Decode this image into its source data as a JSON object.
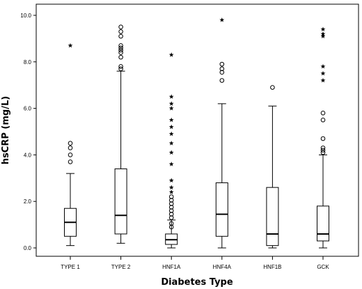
{
  "chart_data": {
    "type": "boxplot",
    "title": "",
    "xlabel": "Diabetes Type",
    "ylabel": "hsCRP (mg/L)",
    "ylim": [
      0,
      10
    ],
    "yticks": [
      "0.0",
      "2.0",
      "4.0",
      "6.0",
      "8.0",
      "10.0"
    ],
    "ytick_values": [
      0,
      2,
      4,
      6,
      8,
      10
    ],
    "grid": false,
    "categories": [
      "TYPE 1",
      "TYPE 2",
      "HNF1A",
      "HNF4A",
      "HNF1B",
      "GCK"
    ],
    "series": [
      {
        "category": "TYPE 1",
        "whisker_low": 0.1,
        "q1": 0.5,
        "median": 1.1,
        "q3": 1.7,
        "whisker_high": 3.2,
        "outliers": [
          3.7,
          4.0,
          4.3,
          4.5
        ],
        "extremes": [
          8.7
        ]
      },
      {
        "category": "TYPE 2",
        "whisker_low": 0.2,
        "q1": 0.6,
        "median": 1.4,
        "q3": 3.4,
        "whisker_high": 7.6,
        "outliers": [
          7.7,
          7.8,
          8.2,
          8.4,
          8.5,
          8.6,
          8.7,
          9.1,
          9.3,
          9.5
        ],
        "extremes": []
      },
      {
        "category": "HNF1A",
        "whisker_low": 0.0,
        "q1": 0.15,
        "median": 0.35,
        "q3": 0.6,
        "whisker_high": 1.2,
        "outliers": [
          0.9,
          1.05,
          1.3,
          1.45,
          1.6,
          1.75,
          1.9,
          2.05,
          2.2
        ],
        "extremes": [
          2.4,
          2.6,
          2.9,
          3.6,
          4.1,
          4.5,
          4.9,
          5.2,
          5.5,
          6.0,
          6.2,
          6.5,
          8.3
        ]
      },
      {
        "category": "HNF4A",
        "whisker_low": 0.0,
        "q1": 0.5,
        "median": 1.45,
        "q3": 2.8,
        "whisker_high": 6.2,
        "outliers": [
          7.2,
          7.55,
          7.7,
          7.9
        ],
        "extremes": [
          9.8
        ]
      },
      {
        "category": "HNF1B",
        "whisker_low": 0.0,
        "q1": 0.1,
        "median": 0.6,
        "q3": 2.6,
        "whisker_high": 6.1,
        "outliers": [
          6.9
        ],
        "extremes": []
      },
      {
        "category": "GCK",
        "whisker_low": 0.0,
        "q1": 0.3,
        "median": 0.6,
        "q3": 1.8,
        "whisker_high": 4.0,
        "outliers": [
          4.1,
          4.2,
          4.3,
          4.7,
          5.5,
          5.8
        ],
        "extremes": [
          7.2,
          7.5,
          7.8,
          9.1,
          9.2,
          9.4
        ]
      }
    ]
  }
}
